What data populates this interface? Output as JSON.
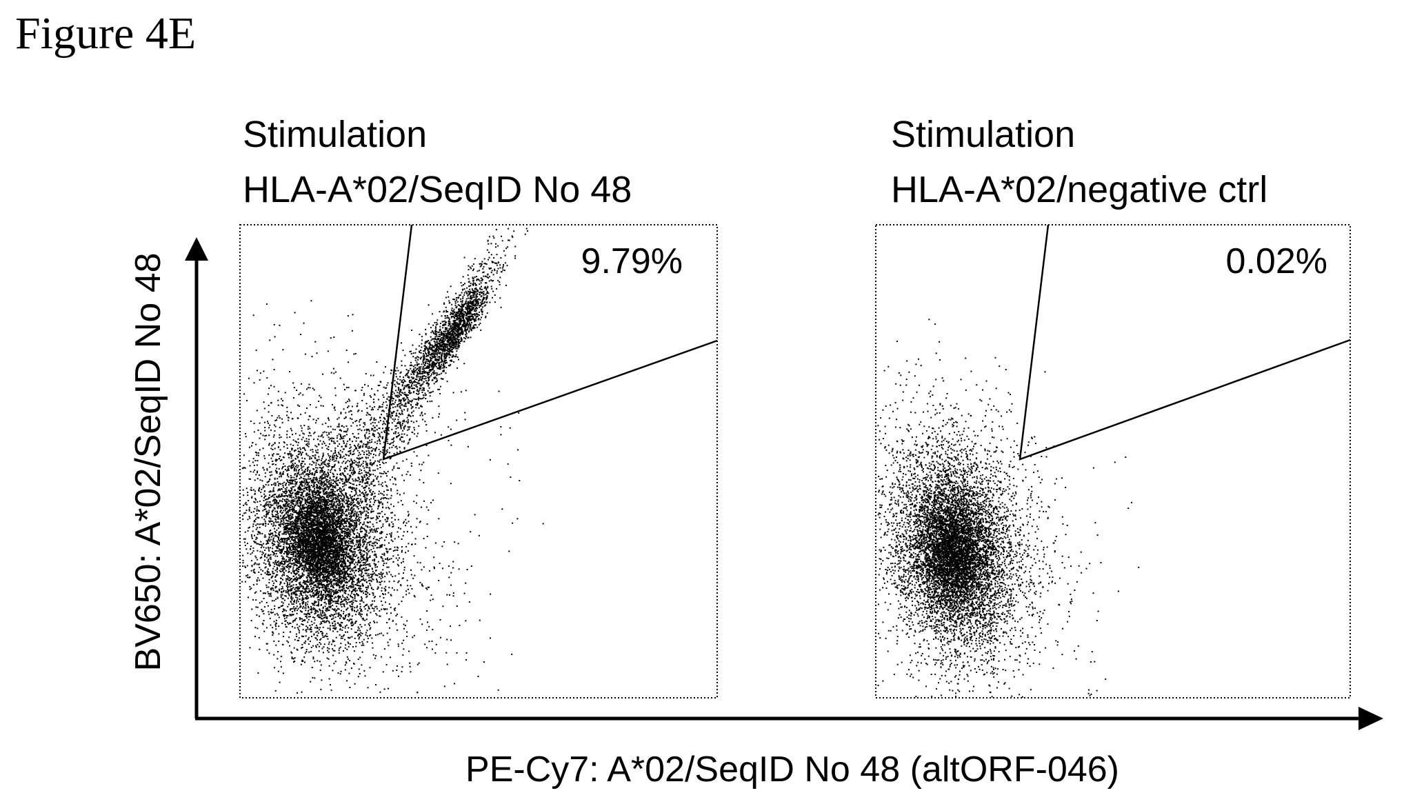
{
  "figure_title": "Figure 4E",
  "chart_data": {
    "type": "scatter",
    "xlabel": "PE-Cy7: A*02/SeqID No 48 (altORF-046)",
    "ylabel": "BV650: A*02/SeqID No 48",
    "grid": false,
    "panels": [
      {
        "title_line1": "Stimulation",
        "title_line2": "HLA-A*02/SeqID No 48",
        "gate_percent": "9.79%",
        "gate_fraction": 0.0979
      },
      {
        "title_line1": "Stimulation",
        "title_line2": "HLA-A*02/negative ctrl",
        "gate_percent": "0.02%",
        "gate_fraction": 0.0002
      }
    ]
  },
  "colors": {
    "ink": "#000000",
    "background": "#ffffff"
  }
}
